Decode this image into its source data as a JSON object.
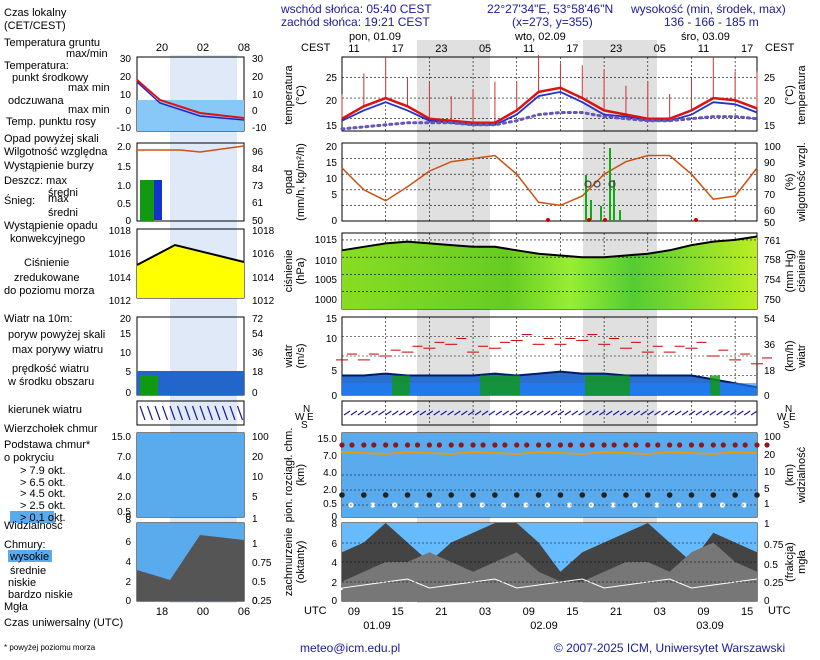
{
  "header": {
    "sunrise": "wschód słońca: 05:40 CEST",
    "sunset": "zachód słońca: 19:21 CEST",
    "coords": "22°27'34\"E, 53°58'46\"N",
    "grid": "(x=273, y=355)",
    "elev_title": "wysokość (min, środek, max)",
    "elev_values": "136 - 166 - 185 m"
  },
  "timeline": {
    "tz_label": "CEST",
    "days": [
      "pon, 01.09",
      "wto, 02.09",
      "śro, 03.09"
    ],
    "hours": [
      "11",
      "17",
      "23",
      "05",
      "11",
      "17",
      "23",
      "05",
      "11",
      "17"
    ],
    "utc_label": "UTC",
    "utc_hours": [
      "09",
      "15",
      "21",
      "03",
      "09",
      "15",
      "21",
      "03",
      "09",
      "15"
    ],
    "utc_dates": [
      "01.09",
      "02.09",
      "03.09"
    ]
  },
  "legend": {
    "time_local": "Czas lokalny",
    "time_local2": "(CET/CEST)",
    "soil_temp": "Temperatura gruntu",
    "max_min": "max/min",
    "temperature": "Temperatura:",
    "midpoint": "punkt środkowy",
    "maxmin2": "max min",
    "felt": "odczuwana",
    "felt_maxmin": "max min",
    "dewpoint": "Temp. punktu rosy",
    "precip_over": "Opad powyżej skali",
    "rh": "Wilgotność względna",
    "storm": "Wystąpienie burzy",
    "rain": "Deszcz: max",
    "rain_mid": "średni",
    "snow": "Śnieg:",
    "snow_max": "max",
    "snow_mid": "średni",
    "conv1": "Wystąpienie opadu",
    "conv2": "konwekcyjnego",
    "press1": "Ciśnienie",
    "press2": "zredukowane",
    "press3": "do poziomu morza",
    "wind10": "Wiatr na 10m:",
    "gust_over": "poryw powyżej skali",
    "gust_max": "max porywy wiatru",
    "wind_speed": "prędkość wiatru",
    "wind_center": "w środku obszaru",
    "wind_dir": "kierunek wiatru",
    "cloud_top": "Wierzchołek chmur",
    "cloud_base1": "Podstawa chmur*",
    "cloud_base2": "o pokryciu",
    "okt79": "> 7.9 okt.",
    "okt65": "> 6.5 okt.",
    "okt45": "> 4.5 okt.",
    "okt25": "> 2.5 okt.",
    "okt01": "> 0.1 okt.",
    "visibility": "Widzialność",
    "clouds": "Chmury:",
    "high": "wysokie",
    "mid": "średnie",
    "low": "niskie",
    "vlow": "bardzo niskie",
    "fog": "Mgła",
    "utc_time": "Czas uniwersalny (UTC)",
    "footnote": "* powyżej poziomu morza"
  },
  "side_axes": {
    "temp_l": [
      "30",
      "20",
      "10",
      "0",
      "-10"
    ],
    "temp_r": [
      "30",
      "20",
      "10",
      "0",
      "-10"
    ],
    "precip_l": [
      "2.0",
      "1.5",
      "1.0",
      "0.5",
      "0"
    ],
    "rh_r": [
      "96",
      "84",
      "73",
      "61",
      "50"
    ],
    "press_l": [
      "1018",
      "1016",
      "1014",
      "1012"
    ],
    "press_r": [
      "1018",
      "1016",
      "1014",
      "1012"
    ],
    "wind_l": [
      "20",
      "15",
      "10",
      "5",
      "0"
    ],
    "wind_r": [
      "72",
      "54",
      "36",
      "18",
      "0"
    ],
    "cloud_l": [
      "15.0",
      "7.0",
      "4.0",
      "2.0",
      "0.5",
      "0"
    ],
    "cloud_r": [
      "100",
      "20",
      "10",
      "5",
      "1"
    ],
    "okt_l": [
      "8",
      "6",
      "4",
      "2",
      "0"
    ],
    "fog_r": [
      "1",
      "0.75",
      "0.5",
      "0.25",
      "0"
    ],
    "hours_local": [
      "20",
      "02",
      "08"
    ],
    "hours_utc": [
      "18",
      "00",
      "06"
    ]
  },
  "axis_titles": {
    "temp_l": "temperatura\n(°C)",
    "temp_r": "(°C)\ntemperatura",
    "precip_l": "opad\n(mm/h, kg/m²/h)",
    "rh_r": "(%)\nwilgotność wzgl.",
    "press_l": "ciśnienie\n(hPa)",
    "press_r": "(mm Hg)\nciśnienie",
    "wind_l": "wiatr\n(m/s)",
    "wind_r": "(km/h)\nwiatr",
    "cloud_l": "pion. rozciągł. chm.\n(km)",
    "cloud_r": "(km)\nwidzialność",
    "okt_l": "zachmurzenie\n(oktanty)",
    "fog_r": "(frakcja)\nmgła"
  },
  "compass": {
    "n": "N",
    "w": "W",
    "e": "E",
    "s": "S"
  },
  "chart_data": [
    {
      "type": "line",
      "panel": "temperature",
      "x": [
        "01.09 09",
        "01.09 12",
        "01.09 15",
        "01.09 18",
        "01.09 21",
        "02.09 00",
        "02.09 03",
        "02.09 06",
        "02.09 09",
        "02.09 12",
        "02.09 15",
        "02.09 18",
        "02.09 21",
        "03.09 00",
        "03.09 03",
        "03.09 06",
        "03.09 09",
        "03.09 12",
        "03.09 15",
        "03.09 18"
      ],
      "series": [
        {
          "name": "punkt środkowy",
          "values": [
            15,
            18,
            20,
            18,
            15,
            14.5,
            14,
            14,
            17,
            21.5,
            22.5,
            20,
            17,
            16,
            15,
            15,
            17,
            20,
            19.5,
            17.5
          ]
        },
        {
          "name": "odczuwana",
          "values": [
            14.5,
            17,
            19,
            17,
            14.5,
            14,
            13.5,
            13.5,
            16,
            20.5,
            21.5,
            19,
            16,
            15.5,
            14.5,
            14.5,
            16,
            19,
            18.5,
            16.5
          ]
        },
        {
          "name": "Temp. punktu rosy",
          "values": [
            12.5,
            13,
            13.5,
            14,
            14,
            14,
            13.5,
            13.5,
            14.5,
            16,
            16.5,
            16.5,
            15.5,
            15,
            14.5,
            14.5,
            15,
            15.5,
            15.5,
            15
          ]
        }
      ],
      "ylim": [
        12,
        30
      ]
    },
    {
      "type": "line",
      "panel": "precipitation",
      "series": [
        {
          "name": "Wilgotność względna",
          "values": [
            84,
            70,
            63,
            72,
            82,
            88,
            90,
            92,
            80,
            62,
            60,
            66,
            80,
            88,
            92,
            92,
            80,
            64,
            66,
            84
          ]
        }
      ],
      "ylim": [
        50,
        100
      ]
    },
    {
      "type": "area",
      "panel": "pressure",
      "series": [
        {
          "name": "Ciśnienie",
          "values": [
            1012,
            1013,
            1014,
            1014.5,
            1014,
            1013.5,
            1013,
            1013,
            1012,
            1011,
            1010.5,
            1010,
            1010,
            1010.5,
            1011,
            1012,
            1013.5,
            1014.5,
            1015,
            1016
          ]
        }
      ],
      "ylim": [
        995,
        1017
      ]
    },
    {
      "type": "area",
      "panel": "wind",
      "series": [
        {
          "name": "max porywy wiatru",
          "values": [
            9,
            9,
            10,
            11,
            12,
            13,
            11,
            12,
            14,
            13,
            13,
            14,
            13,
            12,
            11,
            11,
            12,
            10,
            9,
            8
          ]
        },
        {
          "name": "prędkość wiatru",
          "values": [
            5,
            5,
            5.5,
            5,
            5,
            5,
            5,
            5.5,
            5,
            5.5,
            6,
            5.5,
            5.5,
            5,
            5,
            5,
            5,
            4,
            3,
            2
          ]
        }
      ],
      "ylim": [
        0,
        20
      ]
    },
    {
      "type": "scatter",
      "panel": "cloud_base",
      "series": [
        {
          "name": "Widzialność",
          "values": [
            8,
            8,
            8,
            8,
            8,
            8,
            8,
            8,
            8,
            8,
            6,
            8,
            8,
            8,
            8,
            8,
            8,
            8,
            8,
            8
          ]
        }
      ],
      "ylim": [
        0,
        15
      ]
    },
    {
      "type": "area",
      "panel": "clouds",
      "series": [
        {
          "name": "niskie",
          "values": [
            2,
            3,
            4,
            4,
            5,
            4,
            3,
            4,
            5,
            3,
            2,
            2,
            3,
            4,
            4,
            3,
            5,
            6,
            4,
            3
          ]
        },
        {
          "name": "wysokie",
          "values": [
            5,
            6,
            8,
            6,
            4,
            6,
            7,
            8,
            8,
            6,
            3,
            5,
            6,
            7,
            8,
            6,
            4,
            7,
            6,
            5
          ]
        }
      ],
      "ylim": [
        0,
        8
      ]
    }
  ],
  "footer": {
    "email": "meteo@icm.edu.pl",
    "copyright": "© 2007-2025 ICM, Uniwersytet Warszawski"
  },
  "colors": {
    "blue": "#1a1a9a",
    "red": "#c00000",
    "green": "#008800",
    "orange": "#cc6600",
    "yellow": "#ffff00",
    "sky": "#6cb4ee"
  }
}
